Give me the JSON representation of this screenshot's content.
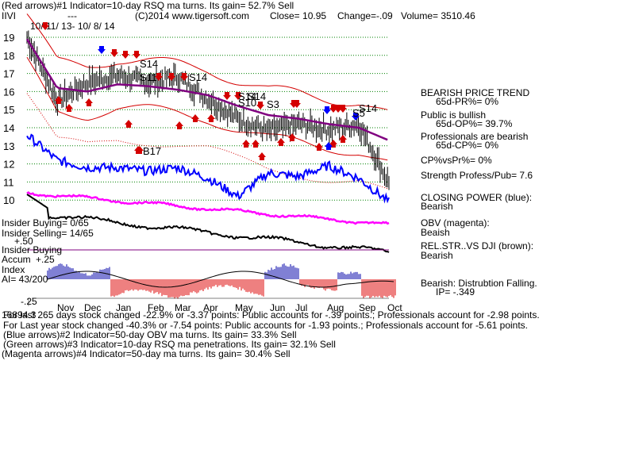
{
  "header": {
    "line1": "(Red arrows)#1 Indicator=10-day RSQ ma turns. Its gain= 52.7% Sell",
    "symbol": "IIVI",
    "dashes": "---",
    "copyright": "(C)2014 www.tigersoft.com",
    "close": "Close=  10.95",
    "change": "Change=-.09",
    "volume": "Volume= 3510.46"
  },
  "date_range": "10/ 11/ 13- 10/ 8/ 14",
  "price_ticks": [
    "19",
    "18",
    "17",
    "16",
    "15",
    "14",
    "13",
    "12",
    "11",
    "10"
  ],
  "month_labels": [
    "Nov",
    "Dec",
    "Jan",
    "Feb",
    "Mar",
    "Apr",
    "May",
    "Jun",
    "Jul",
    "Aug",
    "Sep",
    "Oct"
  ],
  "signal_labels": [
    "S14",
    "S11",
    "S14",
    "S14",
    "S10",
    "S14",
    "S3",
    "S14",
    "S5",
    "B17"
  ],
  "left_labels": {
    "insider_buying": "Insider Buying= 0/65",
    "insider_selling": "Insider Selling= 14/65",
    "plus50": "+.50",
    "insider_buying2": "Insider Buying",
    "accum": "Accum",
    "plus25": "+.25",
    "index": "Index",
    "ai": "AI= 43/200",
    "minus25": "-.25"
  },
  "right_panel": {
    "trend": "BEARISH PRICE TREND",
    "pr": "65d-PR%= 0%",
    "public": "Public is bullish",
    "op": "65d-OP%= 39.7%",
    "prof": "Professionals are bearish",
    "cp": "65d-CP%= 0%",
    "cpvspr": "CP%vsPr%=  0%",
    "strength": "Strength Profess/Pub= 7.6",
    "closing_power": "CLOSING POWER (blue):",
    "cp_state": "Bearish",
    "obv": "OBV (magenta):",
    "obv_state": "Beaish",
    "relstr": "REL.STR..VS DJI (brown):",
    "rel_state": "Bearish",
    "distribution": "Bearish: Distrubtion Falling.",
    "ip": "IP= -.349"
  },
  "footer": {
    "line1": "For last 265 days stock changed -22.9% or -3.37 points:  Public accounts for -.39 points.;  Professionals account for -2.98 points.",
    "overlap": "16894.3",
    "line2": "For Last year stock changed -40.3% or -7.54 points:  Public accounts for -1.93 points.;  Professionals account for -5.61 points.",
    "line3": "(Blue arrows)#2 Indicator=50-day OBV ma turns.  Its gain= 33.3% Sell",
    "line4": "(Green arrows)#3 Indicator=10-day RSQ ma penetrations. Its gain= 32.1% Sell",
    "line5": "(Magenta arrows)#4 Indicator=50-day ma turns. Its gain= 30.4% Sell"
  },
  "colors": {
    "price": "#000000",
    "bands": "#d40000",
    "ma": "#800080",
    "closing_power": "#0000ff",
    "obv": "#ff00ff",
    "relstr": "#000000",
    "grid": "#008000",
    "accum_pos": "#0000aa",
    "accum_neg": "#dd0000"
  },
  "chart_data": {
    "type": "line",
    "x": [
      "Oct 2013",
      "Nov",
      "Dec",
      "Jan",
      "Feb",
      "Mar",
      "Apr",
      "May",
      "Jun",
      "Jul",
      "Aug",
      "Sep",
      "Oct 2014"
    ],
    "ylim": [
      10,
      19
    ],
    "series": [
      {
        "values": [
          19.0,
          15.5,
          16.5,
          16.9,
          16.5,
          16.8,
          15.6,
          14.5,
          13.8,
          14.2,
          13.9,
          14.2,
          10.95
        ]
      },
      {
        "values": [
          18.9,
          16.2,
          16.0,
          16.4,
          16.3,
          16.1,
          15.8,
          15.2,
          14.7,
          14.5,
          14.2,
          14.0,
          13.3
        ]
      },
      {
        "values": [
          13.6,
          12.2,
          11.8,
          11.8,
          11.6,
          11.8,
          11.2,
          10.2,
          11.5,
          11.3,
          11.9,
          11.2,
          9.9
        ]
      }
    ],
    "accum_index": {
      "ylim": [
        -0.25,
        0.25
      ]
    }
  }
}
